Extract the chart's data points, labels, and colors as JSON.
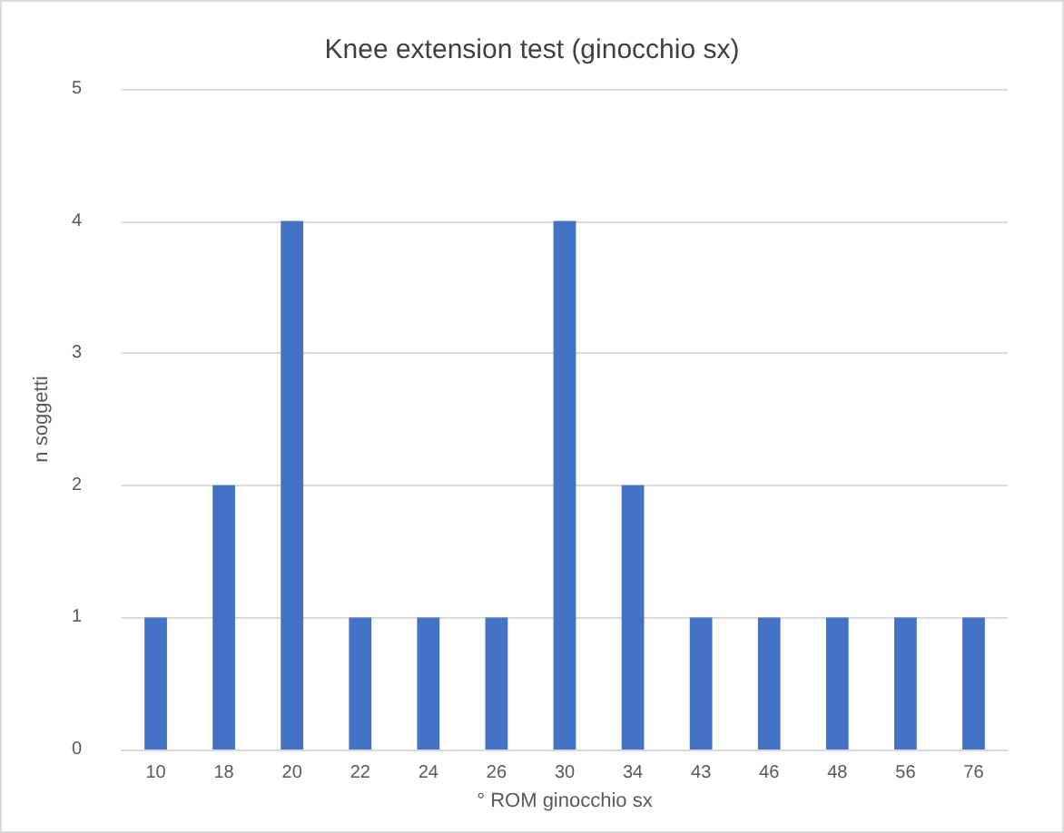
{
  "chart_data": {
    "type": "bar",
    "title": "Knee extension test (ginocchio sx)",
    "xlabel": "° ROM ginocchio sx",
    "ylabel": "n soggetti",
    "categories": [
      "10",
      "18",
      "20",
      "22",
      "24",
      "26",
      "30",
      "34",
      "43",
      "46",
      "48",
      "56",
      "76"
    ],
    "values": [
      1,
      2,
      4,
      1,
      1,
      1,
      4,
      2,
      1,
      1,
      1,
      1,
      1
    ],
    "color": "#4472c4",
    "ylim": [
      0,
      5
    ],
    "yticks": [
      0,
      1,
      2,
      3,
      4,
      5
    ],
    "grid": "y"
  }
}
